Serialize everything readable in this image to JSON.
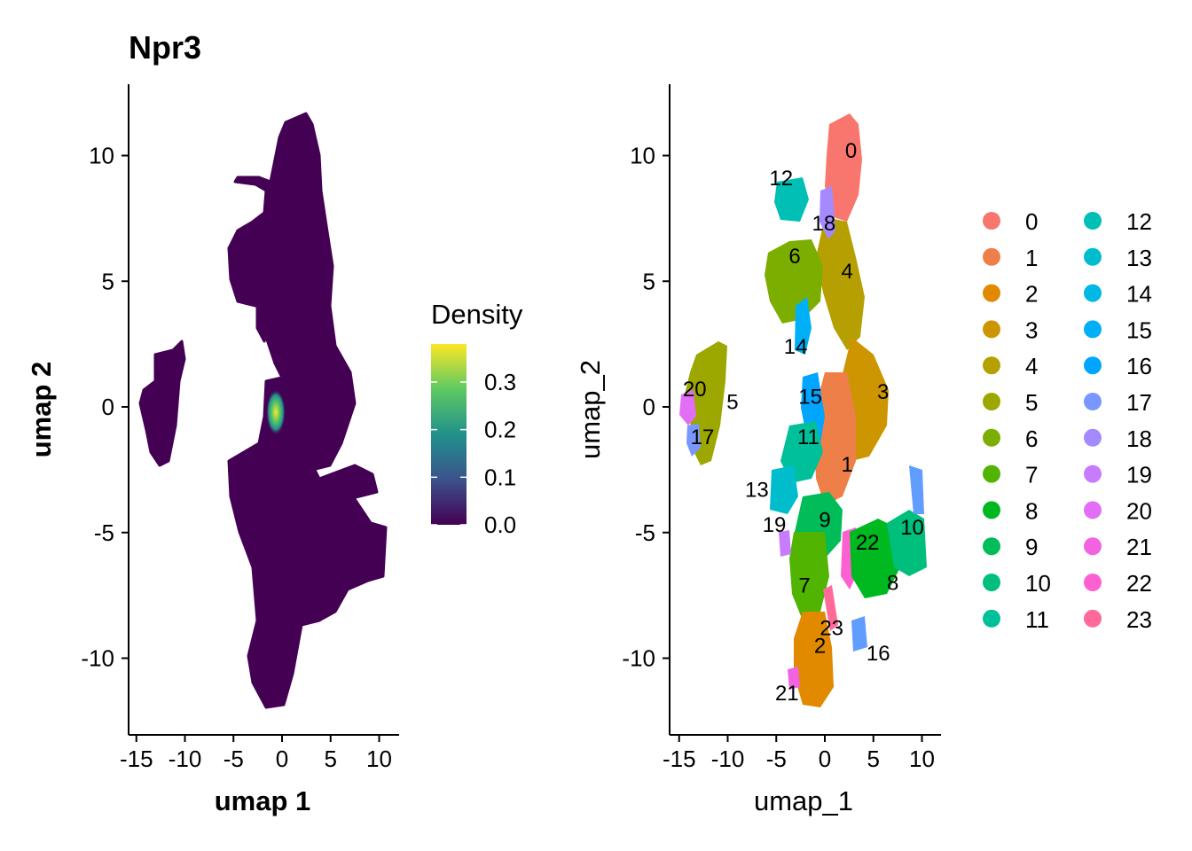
{
  "chart_data": [
    {
      "type": "scatter",
      "title": "Npr3",
      "xlabel": "umap 1",
      "ylabel": "umap 2",
      "xlim": [
        -15.5,
        12
      ],
      "ylim": [
        -13,
        13
      ],
      "xticks": [
        -15,
        -10,
        -5,
        0,
        5,
        10
      ],
      "xtick_labels": [
        "-15",
        "-10",
        "-5",
        "0",
        "5",
        "10"
      ],
      "yticks": [
        -10,
        -5,
        0,
        5,
        10
      ],
      "ytick_labels": [
        "-10",
        "-5",
        "0",
        "5",
        "10"
      ],
      "color_scale": {
        "name": "Density",
        "palette": "viridis",
        "range": [
          0,
          0.38
        ],
        "ticks": [
          0.0,
          0.1,
          0.2,
          0.3
        ],
        "tick_labels": [
          "0.0",
          "0.1",
          "0.2",
          "0.3"
        ],
        "colors": [
          "#440154",
          "#3b528b",
          "#21918c",
          "#5ec962",
          "#fde725"
        ]
      },
      "hotspot": {
        "x": -0.5,
        "y": -0.3,
        "density": 0.38
      },
      "background_color": "#440154",
      "grid": false
    },
    {
      "type": "scatter",
      "title": "",
      "xlabel": "umap_1",
      "ylabel": "umap_2",
      "xlim": [
        -15.5,
        12
      ],
      "ylim": [
        -13,
        13
      ],
      "xticks": [
        -15,
        -10,
        -5,
        0,
        5,
        10
      ],
      "xtick_labels": [
        "-15",
        "-10",
        "-5",
        "0",
        "5",
        "10"
      ],
      "yticks": [
        -10,
        -5,
        0,
        5,
        10
      ],
      "ytick_labels": [
        "-10",
        "-5",
        "0",
        "5",
        "10"
      ],
      "grid": false,
      "legend_placement": "right",
      "clusters": [
        {
          "id": "0",
          "color": "#F8766D",
          "label_x": 2.7,
          "label_y": 10.2
        },
        {
          "id": "1",
          "color": "#EC8239",
          "label_x": 2.3,
          "label_y": -2.3
        },
        {
          "id": "2",
          "color": "#DB8E00",
          "label_x": -0.5,
          "label_y": -9.5
        },
        {
          "id": "3",
          "color": "#C79800",
          "label_x": 6.0,
          "label_y": 0.6
        },
        {
          "id": "4",
          "color": "#AEA200",
          "label_x": 2.3,
          "label_y": 5.4
        },
        {
          "id": "5",
          "color": "#8FAA00",
          "label_x": -9.5,
          "label_y": 0.2
        },
        {
          "id": "6",
          "color": "#64B200",
          "label_x": -3.1,
          "label_y": 6.0
        },
        {
          "id": "7",
          "color": "#00B81B",
          "label_x": -2.1,
          "label_y": -7.1
        },
        {
          "id": "8",
          "color": "#00BD5C",
          "label_x": 7.0,
          "label_y": -7.0
        },
        {
          "id": "9",
          "color": "#00C085",
          "label_x": 0.0,
          "label_y": -4.5
        },
        {
          "id": "10",
          "color": "#00C1A7",
          "label_x": 9.0,
          "label_y": -4.8
        },
        {
          "id": "11",
          "color": "#00BFC4",
          "label_x": -1.7,
          "label_y": -1.2
        },
        {
          "id": "12",
          "color": "#00BADE",
          "label_x": -4.5,
          "label_y": 9.1
        },
        {
          "id": "13",
          "color": "#00B2F3",
          "label_x": -7.0,
          "label_y": -3.3
        },
        {
          "id": "14",
          "color": "#00A6FF",
          "label_x": -3.0,
          "label_y": 2.4
        },
        {
          "id": "15",
          "color": "#7CAEFF",
          "label_x": -1.5,
          "label_y": 0.4
        },
        {
          "id": "16",
          "color": "#619CFF",
          "label_x": 5.5,
          "label_y": -9.8
        },
        {
          "id": "17",
          "color": "#9590FF",
          "label_x": -12.6,
          "label_y": -1.2
        },
        {
          "id": "18",
          "color": "#B983FF",
          "label_x": -0.1,
          "label_y": 7.3
        },
        {
          "id": "19",
          "color": "#D575FE",
          "label_x": -5.2,
          "label_y": -4.7
        },
        {
          "id": "20",
          "color": "#E76BF3",
          "label_x": -13.4,
          "label_y": 0.7
        },
        {
          "id": "21",
          "color": "#F265DE",
          "label_x": -3.9,
          "label_y": -11.4
        },
        {
          "id": "22",
          "color": "#F8766D",
          "label_x": 4.4,
          "label_y": -5.4
        },
        {
          "id": "23",
          "color": "#FF6C91",
          "label_x": 0.7,
          "label_y": -8.8
        }
      ],
      "legend_colors": [
        "#F8766D",
        "#EF7F49",
        "#E18A00",
        "#CD9600",
        "#B69F00",
        "#9CA700",
        "#7CAE00",
        "#50B400",
        "#00B81F",
        "#00BC59",
        "#00BF7D",
        "#00C09A",
        "#00BFB5",
        "#00BDCD",
        "#00B8E3",
        "#00B0F6",
        "#00A5FF",
        "#7997FF",
        "#A58AFF",
        "#C77CFF",
        "#E16EF5",
        "#F263E2",
        "#FD61D1",
        "#FF6A98"
      ],
      "legend_labels": [
        "0",
        "1",
        "2",
        "3",
        "4",
        "5",
        "6",
        "7",
        "8",
        "9",
        "10",
        "11",
        "12",
        "13",
        "14",
        "15",
        "16",
        "17",
        "18",
        "19",
        "20",
        "21",
        "22",
        "23"
      ]
    }
  ]
}
